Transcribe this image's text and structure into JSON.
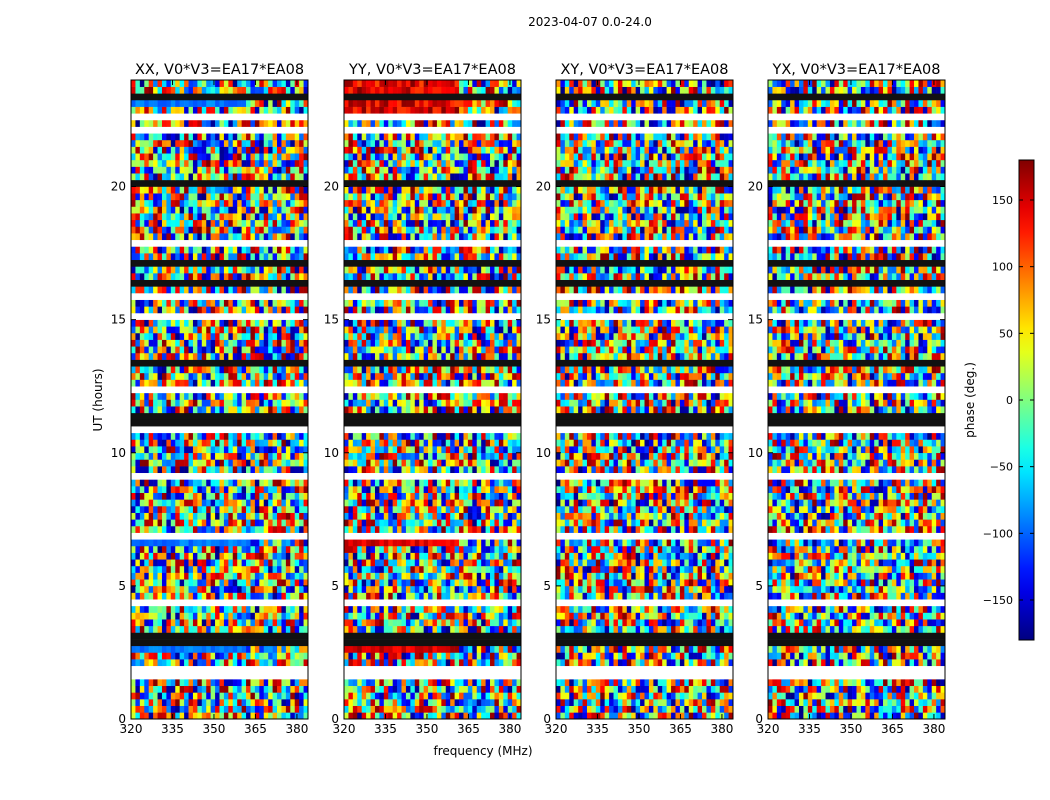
{
  "chart_data": {
    "type": "heatmap",
    "suptitle": "2023-04-07 0.0-24.0",
    "xlabel": "frequency (MHz)",
    "ylabel": "UT (hours)",
    "xlim": [
      320,
      384
    ],
    "ylim": [
      0,
      24
    ],
    "x_ticks": [
      320,
      335,
      350,
      365,
      380
    ],
    "y_ticks": [
      0,
      5,
      10,
      15,
      20
    ],
    "colorbar": {
      "label": "phase (deg.)",
      "colormap": "jet",
      "range": [
        -180,
        180
      ],
      "ticks": [
        -150,
        -100,
        -50,
        0,
        50,
        100,
        150
      ],
      "tick_labels": [
        "−150",
        "−100",
        "−50",
        "0",
        "50",
        "100",
        "150"
      ]
    },
    "panels": [
      {
        "title": "XX, V0*V3=EA17*EA08",
        "polarization": "XX"
      },
      {
        "title": "YY, V0*V3=EA17*EA08",
        "polarization": "YY"
      },
      {
        "title": "XY, V0*V3=EA17*EA08",
        "polarization": "XY"
      },
      {
        "title": "YX, V0*V3=EA17*EA08",
        "polarization": "YX"
      }
    ]
  }
}
